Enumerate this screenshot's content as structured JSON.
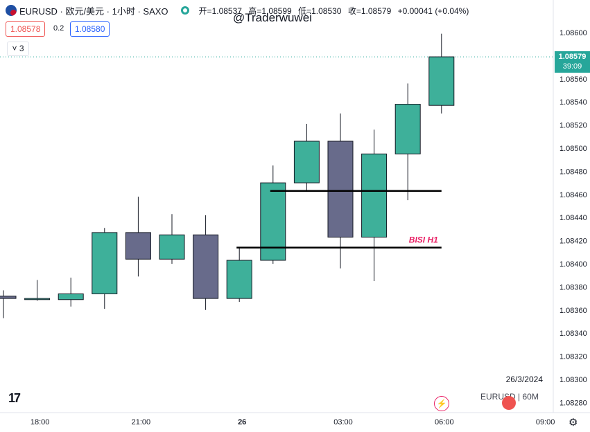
{
  "header": {
    "symbol": "EURUSD · 欧元/美元 · 1小时 · SAXO",
    "open_label": "开",
    "open": "1.08537",
    "high_label": "高",
    "high": "1.08599",
    "low_label": "低",
    "low": "1.08530",
    "close_label": "收",
    "close": "1.08579",
    "change": "+0.00041 (+0.04%)"
  },
  "watermark": "@Traderwuwei",
  "trade": {
    "sell_price": "1.08578",
    "spread": "0.2",
    "buy_price": "1.08580"
  },
  "indicator_count": "3",
  "price_tag": {
    "price": "1.08579",
    "countdown": "39:09"
  },
  "footer": {
    "date": "26/3/2024",
    "symbol": "EURUSD",
    "interval": "60M"
  },
  "logo": "17",
  "colors": {
    "up": "#3eb09a",
    "down": "#686b8b",
    "annotation": "#e91e63",
    "price_tag": "#26a69a"
  },
  "icons": [
    "currency-flag-icon",
    "status-dot-icon",
    "tradingview-logo-icon",
    "bolt-icon",
    "us-flag-icon",
    "settings-icon"
  ],
  "chart_data": {
    "type": "candlestick",
    "timeframe": "1H",
    "ylim": [
      1.0827,
      1.0862
    ],
    "y_ticks": [
      "1.08600",
      "1.08580",
      "1.08560",
      "1.08540",
      "1.08520",
      "1.08500",
      "1.08480",
      "1.08460",
      "1.08440",
      "1.08420",
      "1.08400",
      "1.08380",
      "1.08360",
      "1.08340",
      "1.08320",
      "1.08300",
      "1.08280"
    ],
    "x_ticks": [
      {
        "label": "18:00",
        "index": 1
      },
      {
        "label": "21:00",
        "index": 4
      },
      {
        "label": "26",
        "index": 7
      },
      {
        "label": "03:00",
        "index": 10
      },
      {
        "label": "06:00",
        "index": 13
      },
      {
        "label": "09:00",
        "index": 16
      }
    ],
    "candles": [
      {
        "o": 1.08372,
        "h": 1.08377,
        "l": 1.08353,
        "c": 1.0837
      },
      {
        "o": 1.08369,
        "h": 1.08386,
        "l": 1.08368,
        "c": 1.0837
      },
      {
        "o": 1.08369,
        "h": 1.08388,
        "l": 1.08363,
        "c": 1.08374
      },
      {
        "o": 1.08374,
        "h": 1.08431,
        "l": 1.08361,
        "c": 1.08427
      },
      {
        "o": 1.08427,
        "h": 1.08458,
        "l": 1.08389,
        "c": 1.08404
      },
      {
        "o": 1.08404,
        "h": 1.08443,
        "l": 1.084,
        "c": 1.08425
      },
      {
        "o": 1.08425,
        "h": 1.08442,
        "l": 1.0836,
        "c": 1.0837
      },
      {
        "o": 1.0837,
        "h": 1.08414,
        "l": 1.08367,
        "c": 1.08403
      },
      {
        "o": 1.08403,
        "h": 1.08485,
        "l": 1.084,
        "c": 1.0847
      },
      {
        "o": 1.0847,
        "h": 1.08521,
        "l": 1.08463,
        "c": 1.08506
      },
      {
        "o": 1.08506,
        "h": 1.0853,
        "l": 1.08396,
        "c": 1.08423
      },
      {
        "o": 1.08423,
        "h": 1.08516,
        "l": 1.08385,
        "c": 1.08495
      },
      {
        "o": 1.08495,
        "h": 1.08556,
        "l": 1.08455,
        "c": 1.08538
      },
      {
        "o": 1.08537,
        "h": 1.08599,
        "l": 1.0853,
        "c": 1.08579
      }
    ],
    "lines": [
      {
        "y": 1.08414,
        "x_from": 7,
        "x_to": 13,
        "label": "BISI H1"
      },
      {
        "y": 1.08463,
        "x_from": 8,
        "x_to": 13,
        "label": ""
      }
    ],
    "last_price": 1.08579
  }
}
